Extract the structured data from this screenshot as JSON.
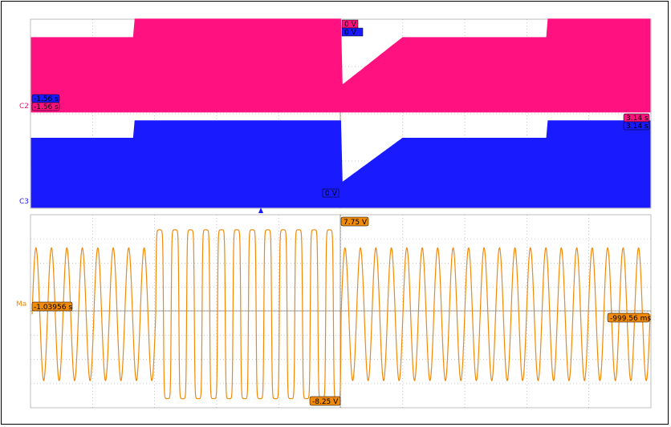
{
  "panels": {
    "top": {
      "label_c2": "C2",
      "label_c3": "C3",
      "markers": {
        "c2_level": "0 V",
        "c3_level": "0 V",
        "c3_left": "-1.56 s",
        "c2_left": "-1.56 s",
        "c2_right": "3.14 s",
        "c3_right": "3.14 s",
        "c3_bottom": "0 V"
      }
    },
    "bottom": {
      "label_math": "Ma",
      "markers": {
        "top": "7.75 V",
        "bottom": "-8.25 V",
        "left": "-1.03956 s",
        "right": "-999.56 ms"
      }
    }
  },
  "colors": {
    "c2": "#ff1180",
    "c3": "#1a1aff",
    "math": "#f08a0a",
    "grid": "#a0a0a0",
    "background": "#ffffff",
    "frame": "#000000"
  },
  "chart_data": [
    {
      "type": "area",
      "channel": "C2",
      "segments": [
        {
          "from": 0.0,
          "to": 0.165,
          "level": 0.72
        },
        {
          "from": 0.165,
          "to": 0.5,
          "level": 0.9
        },
        {
          "from": 0.5,
          "to": 0.6,
          "level": "ramp",
          "start": 0.25,
          "end": 0.72
        },
        {
          "from": 0.6,
          "to": 0.833,
          "level": 0.72
        },
        {
          "from": 0.833,
          "to": 1.0,
          "level": 0.9
        }
      ]
    },
    {
      "type": "area",
      "channel": "C3",
      "segments": [
        {
          "from": 0.0,
          "to": 0.165,
          "level": 0.72
        },
        {
          "from": 0.165,
          "to": 0.5,
          "level": 0.9
        },
        {
          "from": 0.5,
          "to": 0.6,
          "level": "ramp",
          "start": 0.25,
          "end": 0.72
        },
        {
          "from": 0.6,
          "to": 0.833,
          "level": 0.72
        },
        {
          "from": 0.833,
          "to": 1.0,
          "level": 0.9
        }
      ]
    },
    {
      "type": "line",
      "channel": "Math",
      "ylim": [
        -8.25,
        7.75
      ],
      "segments": [
        {
          "from": 0.0,
          "to": 0.2,
          "amplitude": 5.5,
          "waveform": "sine"
        },
        {
          "from": 0.2,
          "to": 0.5,
          "amplitude": 7.0,
          "waveform": "square-ish"
        },
        {
          "from": 0.5,
          "to": 1.0,
          "amplitude": 5.5,
          "waveform": "sine"
        }
      ],
      "cycles": 40
    }
  ]
}
